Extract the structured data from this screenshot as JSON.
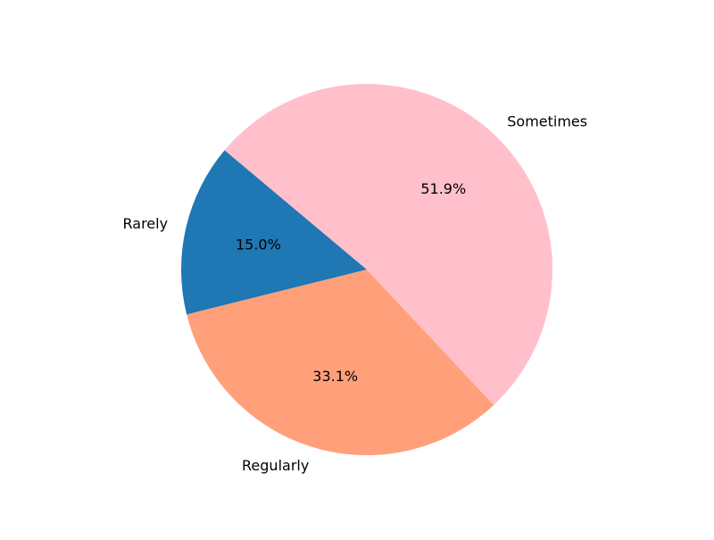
{
  "chart_data": {
    "type": "pie",
    "title": "",
    "labels": [
      "Rarely",
      "Regularly",
      "Sometimes"
    ],
    "values": [
      15.0,
      33.1,
      51.9
    ],
    "percent_labels": [
      "15.0%",
      "33.1%",
      "51.9%"
    ],
    "colors": [
      "#1f77b4",
      "#ffa07a",
      "#ffc0cb"
    ],
    "start_angle_deg": 140,
    "direction": "counterclockwise",
    "legend": "none"
  }
}
